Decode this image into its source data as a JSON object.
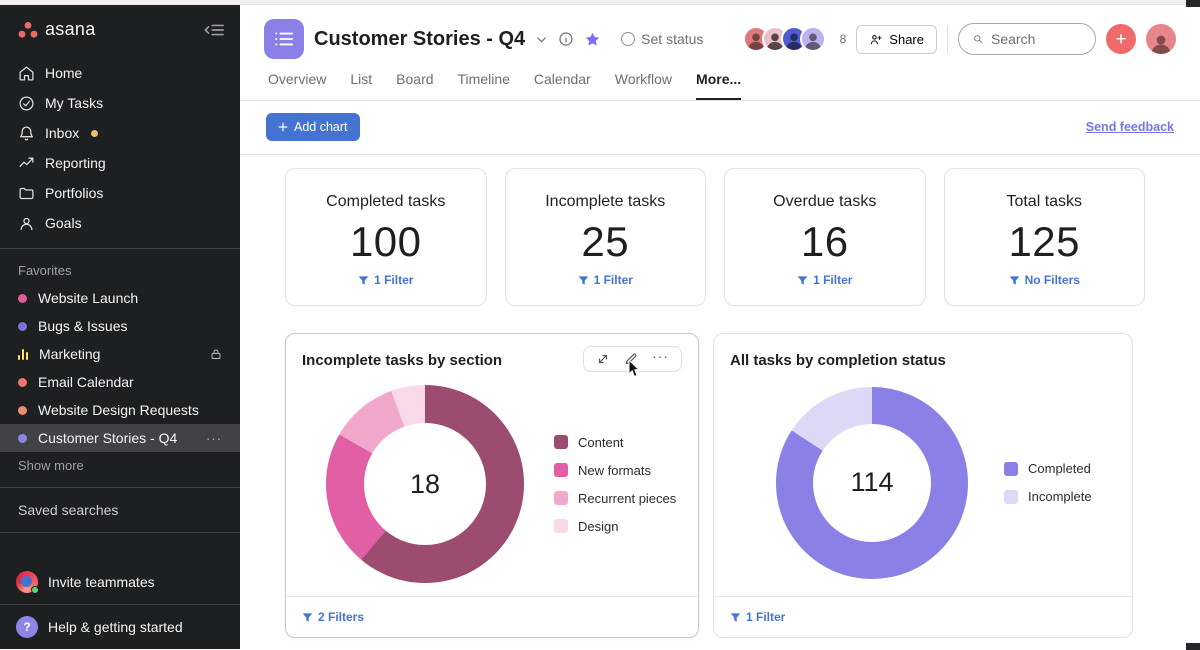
{
  "sidebar": {
    "logo_text": "asana",
    "nav": [
      {
        "label": "Home"
      },
      {
        "label": "My Tasks"
      },
      {
        "label": "Inbox",
        "badge_color": "#f1bd6c"
      },
      {
        "label": "Reporting"
      },
      {
        "label": "Portfolios"
      },
      {
        "label": "Goals"
      }
    ],
    "favorites_label": "Favorites",
    "favorites": [
      {
        "label": "Website Launch",
        "dot_color": "#e05c9a"
      },
      {
        "label": "Bugs & Issues",
        "dot_color": "#7c6fe0"
      },
      {
        "label": "Marketing",
        "dot_color": "#f8df72",
        "locked": true
      },
      {
        "label": "Email Calendar",
        "dot_color": "#f0726f"
      },
      {
        "label": "Website Design Requests",
        "dot_color": "#ec8d71"
      },
      {
        "label": "Customer Stories - Q4",
        "dot_color": "#8d84e8",
        "selected": true
      }
    ],
    "show_more_label": "Show more",
    "saved_searches_label": "Saved searches",
    "invite_label": "Invite teammates",
    "help_label": "Help & getting started"
  },
  "header": {
    "project_title": "Customer Stories - Q4",
    "set_status_label": "Set status",
    "member_count": "8",
    "share_label": "Share",
    "search_placeholder": "Search",
    "tabs": [
      "Overview",
      "List",
      "Board",
      "Timeline",
      "Calendar",
      "Workflow",
      "More..."
    ],
    "active_tab": "More...",
    "avatar_colors": [
      "#e0797c",
      "#e9c1c8",
      "#4f5bd5",
      "#b9b2ec"
    ]
  },
  "toolbar": {
    "add_chart_label": "Add chart",
    "send_feedback_label": "Send feedback"
  },
  "icons": {
    "ellipsis": "···"
  },
  "colors": {
    "accent_blue": "#4573d2",
    "brand_coral": "#f06a6a",
    "sidebar_bg": "#1e1f21",
    "project_purple": "#8b80e8"
  },
  "kpis": [
    {
      "title": "Completed tasks",
      "value": "100",
      "filter_label": "1 Filter"
    },
    {
      "title": "Incomplete tasks",
      "value": "25",
      "filter_label": "1 Filter"
    },
    {
      "title": "Overdue tasks",
      "value": "16",
      "filter_label": "1 Filter"
    },
    {
      "title": "Total tasks",
      "value": "125",
      "filter_label": "No Filters"
    }
  ],
  "chart_data": [
    {
      "type": "pie",
      "subtype": "donut",
      "title": "Incomplete tasks by section",
      "center_value": "18",
      "total": 18,
      "legend_position": "right",
      "series": [
        {
          "label": "Content",
          "value": 11,
          "color": "#9d4c71"
        },
        {
          "label": "New formats",
          "value": 4,
          "color": "#e25fa5"
        },
        {
          "label": "Recurrent pieces",
          "value": 2,
          "color": "#f2a7cd"
        },
        {
          "label": "Design",
          "value": 1,
          "color": "#f9d9e9"
        }
      ],
      "filter_label": "2 Filters"
    },
    {
      "type": "pie",
      "subtype": "donut",
      "title": "All tasks by completion status",
      "center_value": "114",
      "total": 114,
      "legend_position": "right",
      "series": [
        {
          "label": "Completed",
          "value": 96,
          "color": "#8b80e6"
        },
        {
          "label": "Incomplete",
          "value": 18,
          "color": "#ddd8f6"
        }
      ],
      "filter_label": "1 Filter"
    }
  ]
}
